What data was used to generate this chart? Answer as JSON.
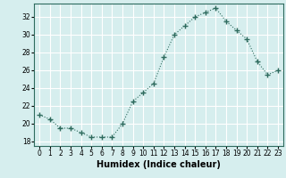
{
  "xlabel": "Humidex (Indice chaleur)",
  "ylabel": "",
  "x": [
    0,
    1,
    2,
    3,
    4,
    5,
    6,
    7,
    8,
    9,
    10,
    11,
    12,
    13,
    14,
    15,
    16,
    17,
    18,
    19,
    20,
    21,
    22,
    23
  ],
  "y": [
    21,
    20.5,
    19.5,
    19.5,
    19,
    18.5,
    18.5,
    18.5,
    20,
    22.5,
    23.5,
    24.5,
    27.5,
    30,
    31,
    32,
    32.5,
    33,
    31.5,
    30.5,
    29.5,
    27,
    25.5,
    26
  ],
  "line_color": "#2e6b5e",
  "marker": "+",
  "marker_size": 4,
  "bg_color": "#d6eeee",
  "grid_color": "#ffffff",
  "xlim": [
    -0.5,
    23.5
  ],
  "ylim": [
    17.5,
    33.5
  ],
  "yticks": [
    18,
    20,
    22,
    24,
    26,
    28,
    30,
    32
  ],
  "xticks": [
    0,
    1,
    2,
    3,
    4,
    5,
    6,
    7,
    8,
    9,
    10,
    11,
    12,
    13,
    14,
    15,
    16,
    17,
    18,
    19,
    20,
    21,
    22,
    23
  ],
  "xtick_labels": [
    "0",
    "1",
    "2",
    "3",
    "4",
    "5",
    "6",
    "7",
    "8",
    "9",
    "10",
    "11",
    "12",
    "13",
    "14",
    "15",
    "16",
    "17",
    "18",
    "19",
    "20",
    "21",
    "22",
    "23"
  ],
  "title_fontsize": 7,
  "label_fontsize": 7,
  "tick_fontsize": 5.5
}
